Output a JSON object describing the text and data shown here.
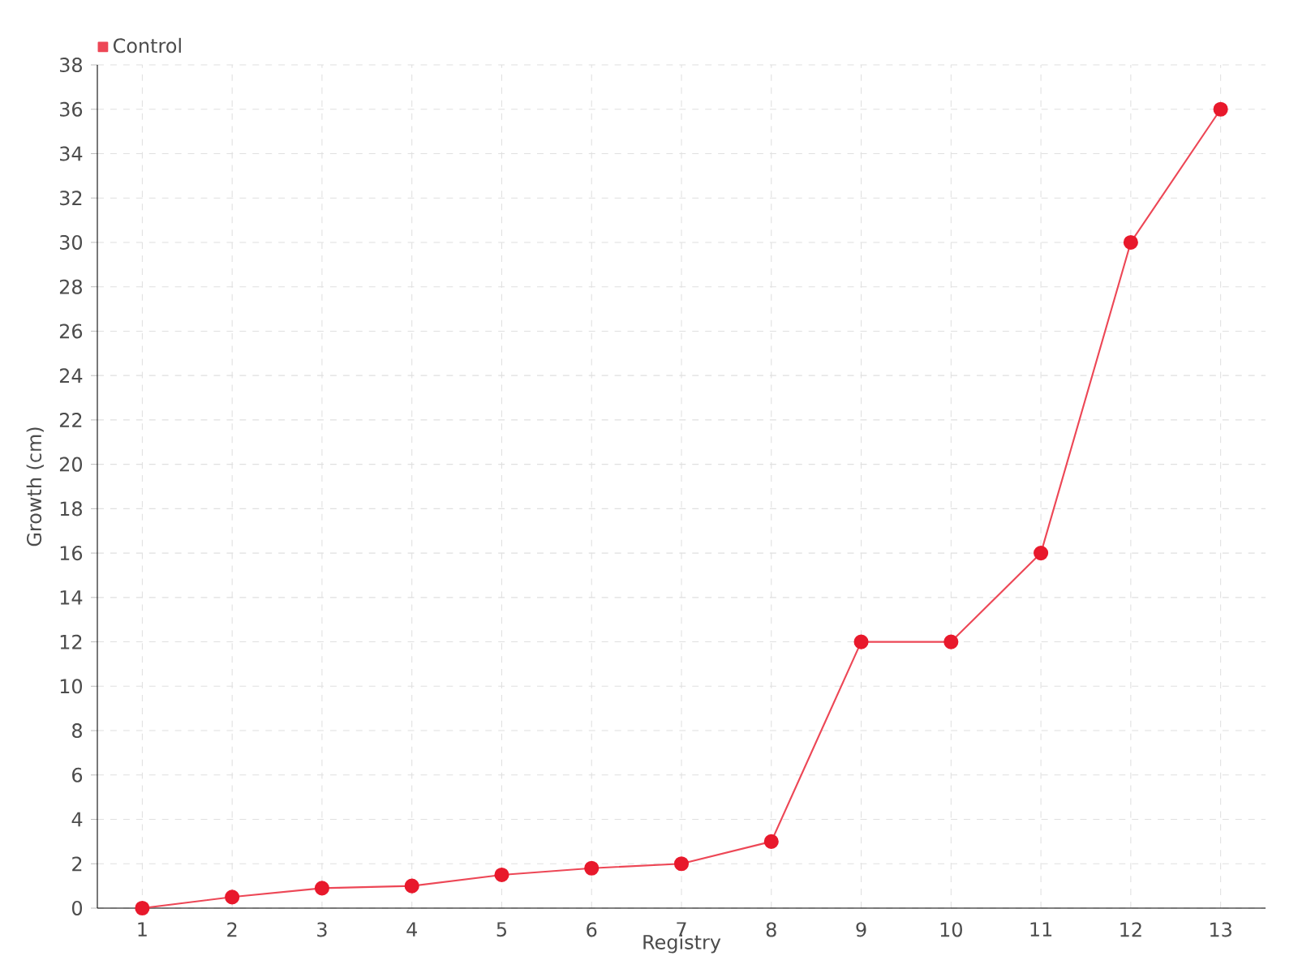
{
  "chart_data": {
    "type": "line",
    "xlabel": "Registry",
    "ylabel": "Growth (cm)",
    "categories": [
      "1",
      "2",
      "3",
      "4",
      "5",
      "6",
      "7",
      "8",
      "9",
      "10",
      "11",
      "12",
      "13"
    ],
    "series": [
      {
        "name": "Control",
        "color": "#e8192c",
        "values": [
          0,
          0.5,
          0.9,
          1,
          1.5,
          1.8,
          2,
          3,
          12,
          12,
          16,
          30,
          36
        ]
      }
    ],
    "ylim": [
      0,
      38
    ],
    "yticks": [
      0,
      2,
      4,
      6,
      8,
      10,
      12,
      14,
      16,
      18,
      20,
      22,
      24,
      26,
      28,
      30,
      32,
      34,
      36,
      38
    ],
    "grid": true,
    "legend": "top left",
    "marker": "circle",
    "line_style": "solid"
  }
}
